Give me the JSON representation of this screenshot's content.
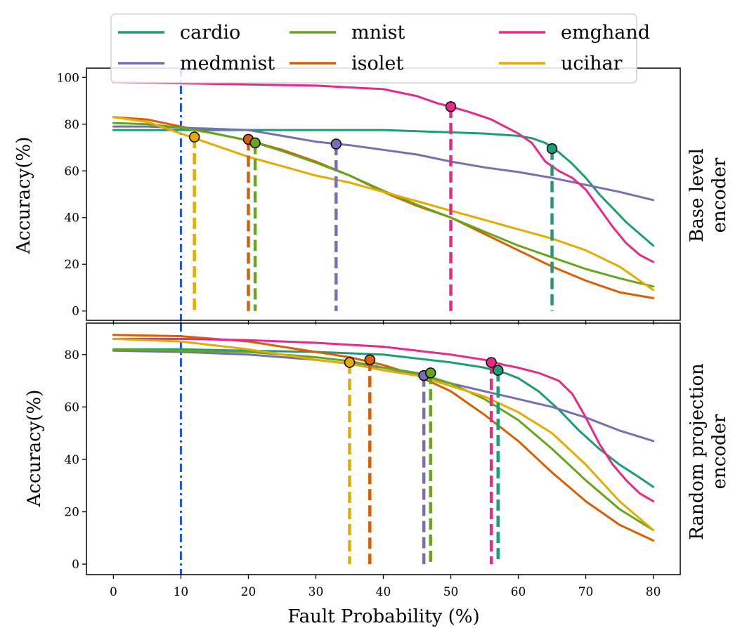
{
  "figure": {
    "xlabel": "Fault Probability (%)",
    "x_ticks": [
      0,
      10,
      20,
      30,
      40,
      50,
      60,
      70,
      80
    ]
  },
  "legend": {
    "placement": "top",
    "entries": [
      "cardio",
      "medmnist",
      "mnist",
      "isolet",
      "emghand",
      "ucihar"
    ]
  },
  "colors": {
    "cardio": "#1b9e77",
    "isolet": "#d95f02",
    "medmnist": "#7570b3",
    "emghand": "#e7298a",
    "mnist": "#66a61e",
    "ucihar": "#e6ab02",
    "reference_line": "#1a4ff0"
  },
  "chart_data": [
    {
      "type": "line",
      "title": "",
      "side_label": [
        "Base level",
        "encoder"
      ],
      "ylabel": "Accuracy(%)",
      "xlim": [
        -4,
        84
      ],
      "ylim": [
        -4,
        104
      ],
      "y_ticks": [
        0,
        20,
        40,
        60,
        80,
        100
      ],
      "reference_x": 10,
      "series": [
        {
          "name": "cardio",
          "x": [
            0,
            10,
            20,
            30,
            40,
            50,
            55,
            60,
            62,
            64,
            66,
            68,
            70,
            72,
            74,
            76,
            78,
            80
          ],
          "y": [
            77.5,
            77.5,
            77.5,
            77.5,
            77.5,
            76.5,
            76,
            75,
            74,
            72,
            68,
            63,
            57,
            50,
            44,
            38,
            33,
            28
          ],
          "marker": {
            "x": 65,
            "y": 69.5
          }
        },
        {
          "name": "isolet",
          "x": [
            0,
            5,
            10,
            15,
            20,
            25,
            30,
            35,
            40,
            45,
            50,
            55,
            60,
            65,
            70,
            75,
            80
          ],
          "y": [
            83,
            82,
            79,
            76,
            73,
            69,
            64,
            58,
            51,
            45,
            40,
            33,
            26,
            19,
            13,
            8,
            5.5
          ],
          "marker": {
            "x": 20,
            "y": 73.5
          }
        },
        {
          "name": "medmnist",
          "x": [
            0,
            5,
            10,
            15,
            20,
            25,
            30,
            35,
            40,
            45,
            50,
            55,
            60,
            65,
            70,
            75,
            80
          ],
          "y": [
            79,
            79,
            78.5,
            78,
            77.5,
            75,
            72.5,
            71,
            69,
            67,
            64,
            61.5,
            59.5,
            57,
            54,
            51,
            47.5
          ],
          "marker": {
            "x": 33,
            "y": 71.5
          }
        },
        {
          "name": "emghand",
          "x": [
            0,
            10,
            20,
            30,
            40,
            45,
            48,
            50,
            53,
            56,
            58,
            60,
            62,
            64,
            66,
            68,
            70,
            72,
            74,
            76,
            78,
            80
          ],
          "y": [
            98,
            97.5,
            97,
            96.5,
            95,
            92,
            89,
            87.5,
            85,
            82,
            79,
            76,
            72,
            64,
            60,
            57,
            52,
            44,
            36,
            29,
            24,
            21
          ],
          "marker": {
            "x": 50,
            "y": 87.5
          }
        },
        {
          "name": "mnist",
          "x": [
            0,
            5,
            10,
            15,
            20,
            25,
            30,
            35,
            40,
            45,
            50,
            55,
            60,
            65,
            70,
            75,
            80
          ],
          "y": [
            80.5,
            80,
            78.5,
            76,
            73,
            68.5,
            63.5,
            58,
            51.5,
            45.5,
            40,
            34,
            28,
            23,
            18,
            14,
            10.5
          ],
          "marker": {
            "x": 21,
            "y": 72
          }
        },
        {
          "name": "ucihar",
          "x": [
            0,
            5,
            10,
            15,
            20,
            25,
            30,
            35,
            40,
            45,
            50,
            55,
            60,
            65,
            70,
            75,
            80
          ],
          "y": [
            83,
            81,
            76,
            71,
            66,
            62,
            58,
            55,
            51,
            47,
            43,
            39,
            35,
            31,
            26,
            19,
            9
          ],
          "marker": {
            "x": 12,
            "y": 74.5
          }
        }
      ]
    },
    {
      "type": "line",
      "title": "",
      "side_label": [
        "Random projection",
        "encoder"
      ],
      "ylabel": "Accuracy(%)",
      "xlim": [
        -4,
        84
      ],
      "ylim": [
        -4,
        92
      ],
      "y_ticks": [
        0,
        20,
        40,
        60,
        80
      ],
      "reference_x": 10,
      "series": [
        {
          "name": "cardio",
          "x": [
            0,
            10,
            20,
            30,
            40,
            50,
            55,
            58,
            60,
            63,
            66,
            69,
            72,
            75,
            78,
            80
          ],
          "y": [
            82,
            82,
            81.5,
            81,
            80,
            77,
            75,
            73,
            71,
            66,
            59,
            51,
            44,
            38,
            33,
            29.5
          ],
          "marker": {
            "x": 57,
            "y": 74
          }
        },
        {
          "name": "isolet",
          "x": [
            0,
            10,
            20,
            30,
            35,
            40,
            45,
            50,
            55,
            60,
            65,
            70,
            75,
            80
          ],
          "y": [
            87.5,
            87,
            85,
            81,
            79,
            76,
            72,
            66,
            57,
            47,
            35,
            24,
            15,
            9
          ],
          "marker": {
            "x": 38,
            "y": 78
          }
        },
        {
          "name": "medmnist",
          "x": [
            0,
            10,
            20,
            30,
            40,
            45,
            50,
            55,
            60,
            65,
            70,
            75,
            80
          ],
          "y": [
            81.5,
            81,
            80,
            78,
            75,
            72.5,
            69,
            66,
            63,
            60,
            56,
            51,
            47
          ],
          "marker": {
            "x": 46,
            "y": 72
          }
        },
        {
          "name": "emghand",
          "x": [
            0,
            10,
            20,
            30,
            40,
            50,
            55,
            58,
            60,
            63,
            66,
            68,
            70,
            72,
            74,
            76,
            78,
            80
          ],
          "y": [
            86,
            86,
            85.5,
            84.5,
            83,
            80,
            78,
            76,
            75,
            73,
            70,
            65,
            56,
            46,
            38,
            32,
            27,
            24
          ],
          "marker": {
            "x": 56,
            "y": 77
          }
        },
        {
          "name": "mnist",
          "x": [
            0,
            10,
            20,
            30,
            35,
            40,
            45,
            50,
            55,
            60,
            65,
            70,
            75,
            80
          ],
          "y": [
            82,
            81.5,
            81,
            79,
            77.5,
            75,
            73,
            69,
            63,
            55,
            44,
            32,
            21,
            13
          ],
          "marker": {
            "x": 47,
            "y": 73
          }
        },
        {
          "name": "ucihar",
          "x": [
            0,
            10,
            20,
            30,
            35,
            40,
            45,
            50,
            55,
            60,
            65,
            70,
            75,
            80
          ],
          "y": [
            86,
            85,
            82,
            78,
            76.5,
            74,
            72,
            68,
            64,
            58,
            50,
            38,
            24,
            13
          ],
          "marker": {
            "x": 35,
            "y": 77
          }
        }
      ]
    }
  ]
}
